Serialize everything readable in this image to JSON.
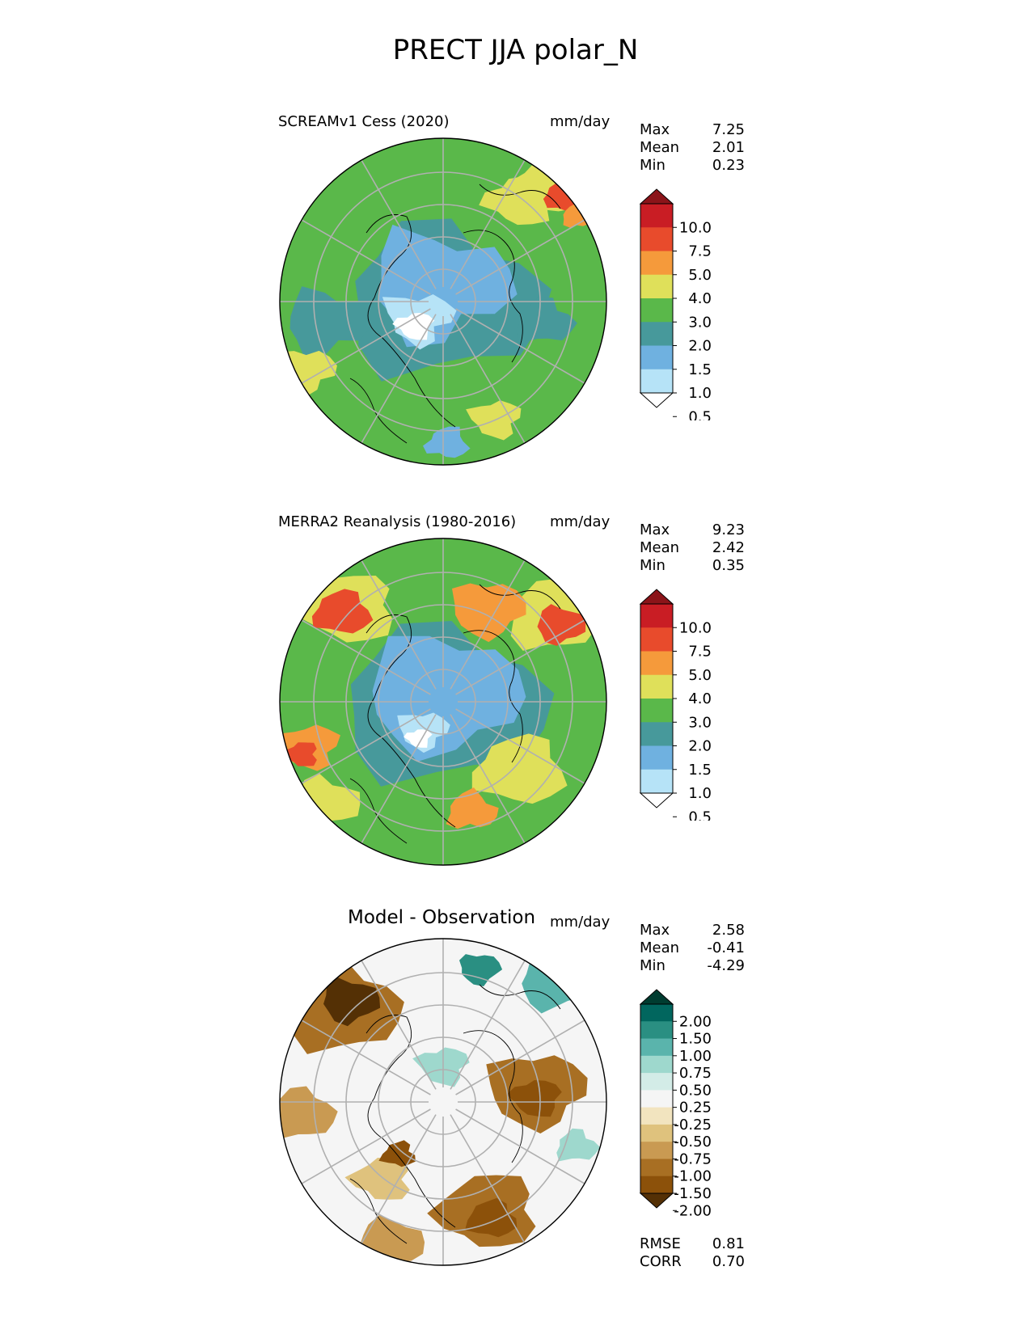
{
  "figure": {
    "title": "PRECT JJA polar_N"
  },
  "panels": [
    {
      "title": "SCREAMv1 Cess (2020)",
      "units": "mm/day",
      "stats": [
        {
          "label": "Max",
          "value": "7.25"
        },
        {
          "label": "Mean",
          "value": "2.01"
        },
        {
          "label": "Min",
          "value": "0.23"
        }
      ]
    },
    {
      "title": "MERRA2 Reanalysis (1980-2016)",
      "units": "mm/day",
      "stats": [
        {
          "label": "Max",
          "value": "9.23"
        },
        {
          "label": "Mean",
          "value": "2.42"
        },
        {
          "label": "Min",
          "value": "0.35"
        }
      ]
    },
    {
      "title": "Model - Observation",
      "units": "mm/day",
      "stats": [
        {
          "label": "Max",
          "value": "2.58"
        },
        {
          "label": "Mean",
          "value": "-0.41"
        },
        {
          "label": "Min",
          "value": "-4.29"
        }
      ],
      "metrics": [
        {
          "label": "RMSE",
          "value": "0.81"
        },
        {
          "label": "CORR",
          "value": "0.70"
        }
      ]
    }
  ],
  "colorbars": {
    "precip": {
      "labels": [
        "10.0",
        "7.5",
        "5.0",
        "4.0",
        "3.0",
        "2.0",
        "1.5",
        "1.0",
        "0.5"
      ],
      "colors": [
        "#ffffff",
        "#b6e3f7",
        "#6fb1e0",
        "#47999b",
        "#5ab84a",
        "#dfe05a",
        "#f59a3b",
        "#e84b2c",
        "#c91d24",
        "#8b1419"
      ]
    },
    "diff": {
      "labels": [
        "2.00",
        "1.50",
        "1.00",
        "0.75",
        "0.50",
        "0.25",
        "-0.25",
        "-0.50",
        "-0.75",
        "-1.00",
        "-1.50",
        "-2.00"
      ],
      "colors": [
        "#543005",
        "#8c510a",
        "#a86f23",
        "#c99a52",
        "#dfc27d",
        "#f2e4bf",
        "#f5f5f5",
        "#d3ece7",
        "#9ed8cd",
        "#5ab4ac",
        "#2a8f82",
        "#01665e",
        "#003c30"
      ]
    }
  },
  "map": {
    "background_colors": {
      "panel1": "#5ab84a",
      "panel2": "#5ab84a",
      "panel3": "#f5f5f5"
    },
    "grid_color": "#b0b0b0",
    "coast_color": "#000000"
  }
}
